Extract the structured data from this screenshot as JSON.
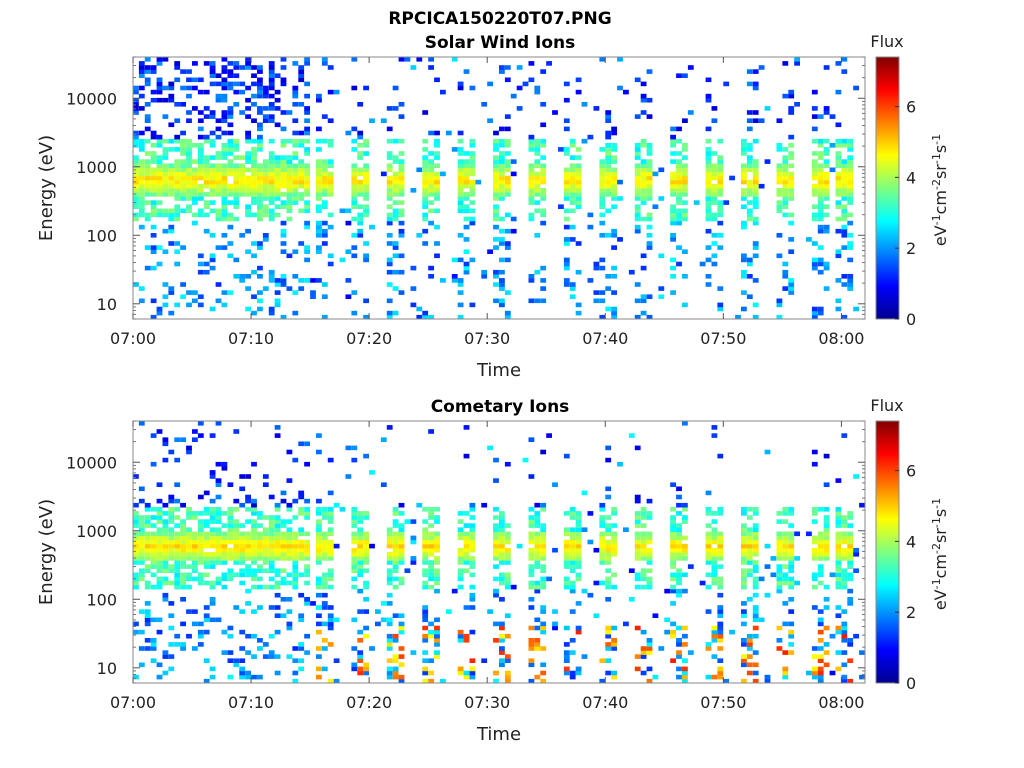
{
  "figure": {
    "main_title": "RPCICA150220T07.PNG",
    "panel_titles": [
      "Solar Wind Ions",
      "Cometary Ions"
    ]
  },
  "chart_data": [
    {
      "type": "heatmap",
      "title": "Solar Wind Ions",
      "xlabel": "Time",
      "ylabel": "Energy (eV)",
      "x_ticks": [
        "07:00",
        "07:10",
        "07:20",
        "07:30",
        "07:40",
        "07:50",
        "08:00"
      ],
      "x_range": [
        "07:00",
        "08:02"
      ],
      "y_scale": "log",
      "y_ticks": [
        "10",
        "100",
        "1000",
        "10000"
      ],
      "y_range": [
        6,
        40000
      ],
      "colorbar": {
        "title": "Flux",
        "label": "eV-1cm-2sr-1s-1",
        "ticks": [
          "0",
          "2",
          "4",
          "6"
        ],
        "range": [
          0,
          7.4
        ],
        "colormap": "jet"
      },
      "peak_flux_energy_eV": 600,
      "burst_times": [
        "07:16",
        "07:19",
        "07:22",
        "07:25",
        "07:28",
        "07:31",
        "07:34",
        "07:37",
        "07:40",
        "07:43",
        "07:46",
        "07:49",
        "07:52",
        "07:55",
        "07:58",
        "08:00"
      ]
    },
    {
      "type": "heatmap",
      "title": "Cometary Ions",
      "xlabel": "Time",
      "ylabel": "Energy (eV)",
      "x_ticks": [
        "07:00",
        "07:10",
        "07:20",
        "07:30",
        "07:40",
        "07:50",
        "08:00"
      ],
      "x_range": [
        "07:00",
        "08:02"
      ],
      "y_scale": "log",
      "y_ticks": [
        "10",
        "100",
        "1000",
        "10000"
      ],
      "y_range": [
        6,
        40000
      ],
      "colorbar": {
        "title": "Flux",
        "label": "eV-1cm-2sr-1s-1",
        "ticks": [
          "0",
          "2",
          "4",
          "6"
        ],
        "range": [
          0,
          7.4
        ],
        "colormap": "jet"
      },
      "peak_flux_energy_eV": 550,
      "burst_times": [
        "07:16",
        "07:19",
        "07:22",
        "07:25",
        "07:28",
        "07:31",
        "07:34",
        "07:37",
        "07:40",
        "07:43",
        "07:46",
        "07:49",
        "07:52",
        "07:55",
        "07:58",
        "08:00"
      ]
    }
  ]
}
